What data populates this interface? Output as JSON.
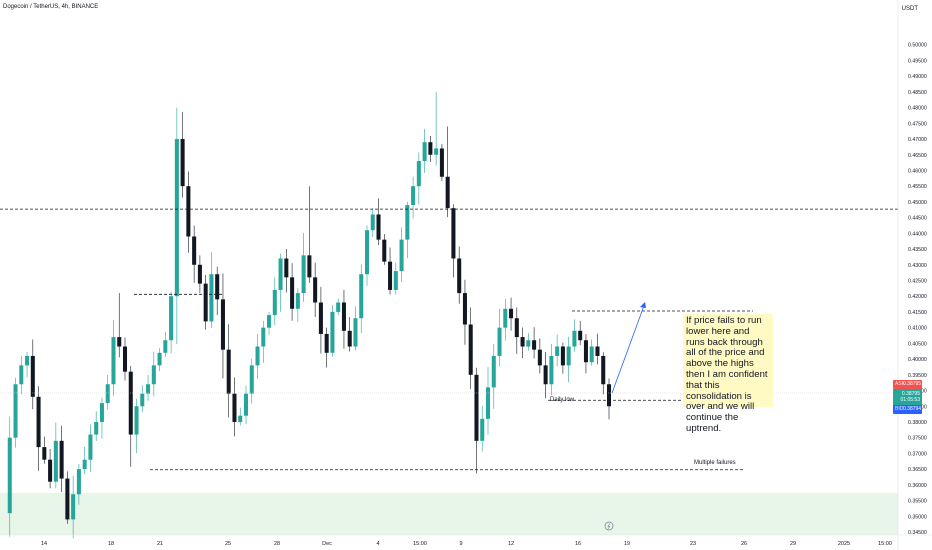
{
  "header": {
    "symbol": "Dogecoin / TetherUS, 4h, BINANCE",
    "quote_currency": "USDT"
  },
  "note_text": "If price fails to run lower here and runs back through all of the price and above the highs then I am confident that this consolidation is over and we will continue the uptrend.",
  "annotations": {
    "daily_low": "Daily low",
    "multiple_failures": "Multiple failures"
  },
  "price_tags": {
    "ask_label": "ASK",
    "ask_value": "0.38795",
    "last_value": "0.38795",
    "countdown": "01:05:53",
    "bid_label": "BID",
    "bid_value": "0.38794"
  },
  "colors": {
    "up": "#26a69a",
    "down": "#131722",
    "ask": "#ef5350",
    "bid": "#2962ff",
    "arrow": "#2962ff",
    "zone": "#e8f5e9",
    "note_bg": "#fff9c4"
  },
  "chart_data": {
    "type": "candlestick",
    "ylim": [
      0.345,
      0.505
    ],
    "y_ticks": [
      "0.50000",
      "0.49500",
      "0.49000",
      "0.48500",
      "0.48000",
      "0.47500",
      "0.47000",
      "0.46500",
      "0.46000",
      "0.45500",
      "0.45000",
      "0.44500",
      "0.44000",
      "0.43500",
      "0.43000",
      "0.42500",
      "0.42000",
      "0.41500",
      "0.41000",
      "0.40500",
      "0.40000",
      "0.39500",
      "0.39000",
      "0.38500",
      "0.38000",
      "0.37500",
      "0.37000",
      "0.36500",
      "0.36000",
      "0.35500",
      "0.35000",
      "0.34500"
    ],
    "x_ticks": [
      "14",
      "18",
      "21",
      "25",
      "28",
      "Dec",
      "4",
      "15:00",
      "9",
      "12",
      "16",
      "19",
      "23",
      "26",
      "29",
      "2025",
      "15:00"
    ],
    "price_path": [
      0.351,
      0.375,
      0.392,
      0.398,
      0.401,
      0.388,
      0.372,
      0.368,
      0.361,
      0.374,
      0.362,
      0.349,
      0.357,
      0.365,
      0.368,
      0.376,
      0.38,
      0.386,
      0.392,
      0.407,
      0.404,
      0.396,
      0.376,
      0.385,
      0.389,
      0.392,
      0.398,
      0.402,
      0.406,
      0.42,
      0.47,
      0.455,
      0.439,
      0.43,
      0.424,
      0.412,
      0.427,
      0.419,
      0.403,
      0.389,
      0.38,
      0.382,
      0.389,
      0.398,
      0.404,
      0.41,
      0.414,
      0.422,
      0.432,
      0.426,
      0.416,
      0.421,
      0.433,
      0.426,
      0.418,
      0.408,
      0.402,
      0.415,
      0.418,
      0.409,
      0.404,
      0.413,
      0.427,
      0.441,
      0.446,
      0.438,
      0.431,
      0.422,
      0.428,
      0.438,
      0.449,
      0.455,
      0.463,
      0.469,
      0.465,
      0.467,
      0.458,
      0.448,
      0.432,
      0.421,
      0.411,
      0.395,
      0.374,
      0.381,
      0.391,
      0.401,
      0.41,
      0.416,
      0.413,
      0.407,
      0.404,
      0.406,
      0.403,
      0.398,
      0.392,
      0.401,
      0.404,
      0.398,
      0.404,
      0.409,
      0.406,
      0.399,
      0.404,
      0.401,
      0.392,
      0.385
    ],
    "levels": [
      {
        "price": 0.4477,
        "style": "dashed"
      },
      {
        "price": 0.4206,
        "style": "dashed"
      },
      {
        "price": 0.4153,
        "style": "dashed"
      },
      {
        "price": 0.3869,
        "style": "dashed",
        "label": "Daily low"
      },
      {
        "price": 0.3648,
        "style": "dashed",
        "label": "Multiple failures"
      }
    ],
    "support_zone": [
      0.345,
      0.357
    ],
    "last_price": 0.38795,
    "projection": {
      "from": 0.387,
      "to": 0.416
    }
  }
}
